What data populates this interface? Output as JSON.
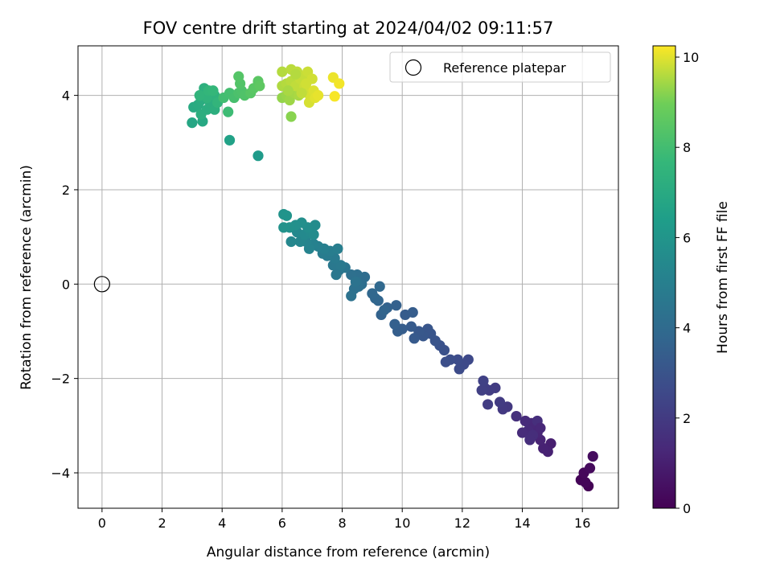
{
  "chart_data": {
    "type": "scatter",
    "title": "FOV centre drift starting at 2024/04/02 09:11:57",
    "xlabel": "Angular distance from reference (arcmin)",
    "ylabel": "Rotation from reference (arcmin)",
    "xlim": [
      -0.8,
      17.2
    ],
    "ylim": [
      -4.75,
      5.05
    ],
    "xticks": [
      0,
      2,
      4,
      6,
      8,
      10,
      12,
      14,
      16
    ],
    "yticks": [
      -4,
      -2,
      0,
      2,
      4
    ],
    "grid": true,
    "legend": {
      "position": "top-right",
      "entries": [
        "Reference platepar"
      ]
    },
    "reference_point": {
      "x": 0,
      "y": 0,
      "label": "Reference platepar"
    },
    "colorbar": {
      "label": "Hours from first FF file",
      "range": [
        0,
        10.25
      ],
      "ticks": [
        0,
        2,
        4,
        6,
        8,
        10
      ],
      "colormap": "viridis"
    },
    "series": [
      {
        "values": [
          {
            "x": 16.2,
            "y": -4.28,
            "t": 0.05
          },
          {
            "x": 15.95,
            "y": -4.15,
            "t": 0.1
          },
          {
            "x": 16.1,
            "y": -4.2,
            "t": 0.15
          },
          {
            "x": 16.05,
            "y": -4.0,
            "t": 0.2
          },
          {
            "x": 16.25,
            "y": -3.9,
            "t": 0.3
          },
          {
            "x": 16.35,
            "y": -3.65,
            "t": 0.35
          },
          {
            "x": 14.95,
            "y": -3.38,
            "t": 1.0
          },
          {
            "x": 14.85,
            "y": -3.55,
            "t": 1.05
          },
          {
            "x": 14.7,
            "y": -3.48,
            "t": 1.1
          },
          {
            "x": 14.6,
            "y": -3.3,
            "t": 1.15
          },
          {
            "x": 14.5,
            "y": -3.15,
            "t": 1.2
          },
          {
            "x": 14.4,
            "y": -3.05,
            "t": 1.25
          },
          {
            "x": 14.3,
            "y": -2.95,
            "t": 1.3
          },
          {
            "x": 14.2,
            "y": -3.1,
            "t": 1.35
          },
          {
            "x": 14.1,
            "y": -2.9,
            "t": 1.4
          },
          {
            "x": 14.0,
            "y": -3.15,
            "t": 1.45
          },
          {
            "x": 14.35,
            "y": -3.2,
            "t": 1.5
          },
          {
            "x": 13.8,
            "y": -2.8,
            "t": 1.6
          },
          {
            "x": 14.5,
            "y": -2.9,
            "t": 1.55
          },
          {
            "x": 14.25,
            "y": -3.3,
            "t": 1.5
          },
          {
            "x": 14.6,
            "y": -3.05,
            "t": 1.3
          },
          {
            "x": 13.5,
            "y": -2.6,
            "t": 1.9
          },
          {
            "x": 13.35,
            "y": -2.65,
            "t": 1.95
          },
          {
            "x": 13.25,
            "y": -2.5,
            "t": 2.0
          },
          {
            "x": 13.1,
            "y": -2.2,
            "t": 2.05
          },
          {
            "x": 12.9,
            "y": -2.25,
            "t": 2.1
          },
          {
            "x": 12.85,
            "y": -2.55,
            "t": 2.1
          },
          {
            "x": 12.75,
            "y": -2.2,
            "t": 2.15
          },
          {
            "x": 12.65,
            "y": -2.25,
            "t": 2.2
          },
          {
            "x": 12.7,
            "y": -2.05,
            "t": 2.25
          },
          {
            "x": 12.2,
            "y": -1.6,
            "t": 2.55
          },
          {
            "x": 12.05,
            "y": -1.7,
            "t": 2.6
          },
          {
            "x": 11.9,
            "y": -1.8,
            "t": 2.65
          },
          {
            "x": 11.85,
            "y": -1.6,
            "t": 2.7
          },
          {
            "x": 11.6,
            "y": -1.6,
            "t": 2.75
          },
          {
            "x": 11.45,
            "y": -1.65,
            "t": 2.8
          },
          {
            "x": 11.4,
            "y": -1.4,
            "t": 2.9
          },
          {
            "x": 11.25,
            "y": -1.3,
            "t": 2.95
          },
          {
            "x": 11.1,
            "y": -1.2,
            "t": 3.0
          },
          {
            "x": 10.95,
            "y": -1.05,
            "t": 3.05
          },
          {
            "x": 10.85,
            "y": -0.95,
            "t": 3.1
          },
          {
            "x": 10.7,
            "y": -1.1,
            "t": 3.15
          },
          {
            "x": 10.55,
            "y": -1.0,
            "t": 3.2
          },
          {
            "x": 10.4,
            "y": -1.15,
            "t": 3.25
          },
          {
            "x": 10.3,
            "y": -0.9,
            "t": 3.3
          },
          {
            "x": 10.1,
            "y": -0.65,
            "t": 3.35
          },
          {
            "x": 10.35,
            "y": -0.6,
            "t": 3.4
          },
          {
            "x": 10.0,
            "y": -0.95,
            "t": 3.4
          },
          {
            "x": 9.85,
            "y": -1.0,
            "t": 3.45
          },
          {
            "x": 9.75,
            "y": -0.85,
            "t": 3.5
          },
          {
            "x": 9.8,
            "y": -0.45,
            "t": 3.55
          },
          {
            "x": 9.5,
            "y": -0.5,
            "t": 3.6
          },
          {
            "x": 9.3,
            "y": -0.65,
            "t": 3.65
          },
          {
            "x": 9.4,
            "y": -0.55,
            "t": 3.7
          },
          {
            "x": 9.2,
            "y": -0.35,
            "t": 3.75
          },
          {
            "x": 9.1,
            "y": -0.3,
            "t": 3.8
          },
          {
            "x": 9.0,
            "y": -0.2,
            "t": 3.85
          },
          {
            "x": 9.25,
            "y": -0.05,
            "t": 3.9
          },
          {
            "x": 8.75,
            "y": 0.15,
            "t": 4.1
          },
          {
            "x": 8.65,
            "y": 0.0,
            "t": 4.15
          },
          {
            "x": 8.5,
            "y": 0.2,
            "t": 4.2
          },
          {
            "x": 8.3,
            "y": 0.2,
            "t": 4.25
          },
          {
            "x": 8.55,
            "y": -0.05,
            "t": 4.25
          },
          {
            "x": 8.4,
            "y": -0.1,
            "t": 4.3
          },
          {
            "x": 8.3,
            "y": -0.25,
            "t": 4.35
          },
          {
            "x": 8.45,
            "y": 0.05,
            "t": 4.4
          },
          {
            "x": 8.1,
            "y": 0.35,
            "t": 4.5
          },
          {
            "x": 7.9,
            "y": 0.3,
            "t": 4.55
          },
          {
            "x": 7.8,
            "y": 0.2,
            "t": 4.6
          },
          {
            "x": 7.7,
            "y": 0.4,
            "t": 4.65
          },
          {
            "x": 7.95,
            "y": 0.4,
            "t": 4.7
          },
          {
            "x": 7.75,
            "y": 0.55,
            "t": 4.75
          },
          {
            "x": 7.5,
            "y": 0.6,
            "t": 4.8
          },
          {
            "x": 7.35,
            "y": 0.65,
            "t": 4.85
          },
          {
            "x": 7.6,
            "y": 0.7,
            "t": 4.9
          },
          {
            "x": 7.85,
            "y": 0.75,
            "t": 4.95
          },
          {
            "x": 7.4,
            "y": 0.75,
            "t": 5.0
          },
          {
            "x": 7.2,
            "y": 0.8,
            "t": 5.05
          },
          {
            "x": 7.05,
            "y": 0.85,
            "t": 5.1
          },
          {
            "x": 6.9,
            "y": 0.75,
            "t": 5.15
          },
          {
            "x": 6.8,
            "y": 0.9,
            "t": 5.2
          },
          {
            "x": 6.6,
            "y": 0.9,
            "t": 5.3
          },
          {
            "x": 6.3,
            "y": 0.9,
            "t": 5.35
          },
          {
            "x": 6.5,
            "y": 1.1,
            "t": 5.4
          },
          {
            "x": 6.75,
            "y": 1.05,
            "t": 5.45
          },
          {
            "x": 6.95,
            "y": 1.1,
            "t": 5.5
          },
          {
            "x": 7.05,
            "y": 1.05,
            "t": 5.55
          },
          {
            "x": 7.1,
            "y": 1.25,
            "t": 5.6
          },
          {
            "x": 6.85,
            "y": 1.2,
            "t": 5.65
          },
          {
            "x": 6.65,
            "y": 1.3,
            "t": 5.7
          },
          {
            "x": 6.45,
            "y": 1.25,
            "t": 5.75
          },
          {
            "x": 6.25,
            "y": 1.2,
            "t": 5.8
          },
          {
            "x": 6.05,
            "y": 1.2,
            "t": 5.85
          },
          {
            "x": 6.05,
            "y": 1.48,
            "t": 5.9
          },
          {
            "x": 6.15,
            "y": 1.45,
            "t": 5.95
          },
          {
            "x": 5.2,
            "y": 2.72,
            "t": 6.25
          },
          {
            "x": 4.25,
            "y": 3.05,
            "t": 6.6
          },
          {
            "x": 3.0,
            "y": 3.42,
            "t": 6.8
          },
          {
            "x": 3.35,
            "y": 3.45,
            "t": 6.9
          },
          {
            "x": 3.05,
            "y": 3.75,
            "t": 7.0
          },
          {
            "x": 3.2,
            "y": 3.8,
            "t": 7.05
          },
          {
            "x": 3.3,
            "y": 3.9,
            "t": 7.1
          },
          {
            "x": 3.5,
            "y": 3.7,
            "t": 7.15
          },
          {
            "x": 3.6,
            "y": 3.85,
            "t": 7.2
          },
          {
            "x": 3.75,
            "y": 3.7,
            "t": 7.25
          },
          {
            "x": 3.4,
            "y": 4.15,
            "t": 7.3
          },
          {
            "x": 3.6,
            "y": 4.05,
            "t": 7.35
          },
          {
            "x": 3.75,
            "y": 4.0,
            "t": 7.4
          },
          {
            "x": 3.5,
            "y": 3.95,
            "t": 7.45
          },
          {
            "x": 3.25,
            "y": 4.0,
            "t": 7.5
          },
          {
            "x": 3.85,
            "y": 3.85,
            "t": 7.55
          },
          {
            "x": 3.55,
            "y": 4.1,
            "t": 7.6
          },
          {
            "x": 3.3,
            "y": 3.6,
            "t": 7.2
          },
          {
            "x": 3.7,
            "y": 4.1,
            "t": 7.65
          },
          {
            "x": 4.2,
            "y": 3.65,
            "t": 7.9
          },
          {
            "x": 4.05,
            "y": 3.95,
            "t": 8.0
          },
          {
            "x": 4.25,
            "y": 4.05,
            "t": 8.05
          },
          {
            "x": 4.4,
            "y": 3.95,
            "t": 8.1
          },
          {
            "x": 4.55,
            "y": 4.05,
            "t": 8.2
          },
          {
            "x": 4.65,
            "y": 4.1,
            "t": 8.25
          },
          {
            "x": 4.75,
            "y": 4.0,
            "t": 8.3
          },
          {
            "x": 4.6,
            "y": 4.25,
            "t": 8.35
          },
          {
            "x": 4.55,
            "y": 4.4,
            "t": 8.4
          },
          {
            "x": 4.95,
            "y": 4.05,
            "t": 8.45
          },
          {
            "x": 5.05,
            "y": 4.15,
            "t": 8.5
          },
          {
            "x": 5.2,
            "y": 4.3,
            "t": 8.55
          },
          {
            "x": 5.25,
            "y": 4.2,
            "t": 8.6
          },
          {
            "x": 6.3,
            "y": 3.55,
            "t": 9.2
          },
          {
            "x": 6.0,
            "y": 3.95,
            "t": 9.3
          },
          {
            "x": 6.15,
            "y": 4.0,
            "t": 9.35
          },
          {
            "x": 6.25,
            "y": 3.9,
            "t": 9.4
          },
          {
            "x": 6.4,
            "y": 4.05,
            "t": 9.45
          },
          {
            "x": 6.55,
            "y": 4.0,
            "t": 9.5
          },
          {
            "x": 6.0,
            "y": 4.2,
            "t": 9.55
          },
          {
            "x": 6.15,
            "y": 4.25,
            "t": 9.6
          },
          {
            "x": 6.3,
            "y": 4.3,
            "t": 9.65
          },
          {
            "x": 6.45,
            "y": 4.2,
            "t": 9.7
          },
          {
            "x": 6.6,
            "y": 4.35,
            "t": 9.75
          },
          {
            "x": 6.75,
            "y": 4.2,
            "t": 9.8
          },
          {
            "x": 6.85,
            "y": 4.05,
            "t": 9.85
          },
          {
            "x": 6.95,
            "y": 3.95,
            "t": 9.9
          },
          {
            "x": 7.05,
            "y": 4.1,
            "t": 9.95
          },
          {
            "x": 6.0,
            "y": 4.5,
            "t": 9.6
          },
          {
            "x": 6.3,
            "y": 4.55,
            "t": 9.65
          },
          {
            "x": 6.5,
            "y": 4.5,
            "t": 9.7
          },
          {
            "x": 6.7,
            "y": 4.4,
            "t": 9.75
          },
          {
            "x": 6.85,
            "y": 4.5,
            "t": 9.8
          },
          {
            "x": 7.0,
            "y": 4.35,
            "t": 9.85
          },
          {
            "x": 6.2,
            "y": 4.1,
            "t": 9.5
          },
          {
            "x": 6.45,
            "y": 4.45,
            "t": 9.6
          },
          {
            "x": 6.9,
            "y": 3.85,
            "t": 9.9
          },
          {
            "x": 7.1,
            "y": 3.95,
            "t": 10.0
          },
          {
            "x": 7.2,
            "y": 4.0,
            "t": 10.05
          },
          {
            "x": 6.65,
            "y": 4.05,
            "t": 9.7
          },
          {
            "x": 6.8,
            "y": 4.25,
            "t": 9.85
          },
          {
            "x": 7.7,
            "y": 4.38,
            "t": 10.1
          },
          {
            "x": 7.9,
            "y": 4.25,
            "t": 10.15
          },
          {
            "x": 7.75,
            "y": 3.98,
            "t": 10.2
          }
        ]
      }
    ]
  }
}
